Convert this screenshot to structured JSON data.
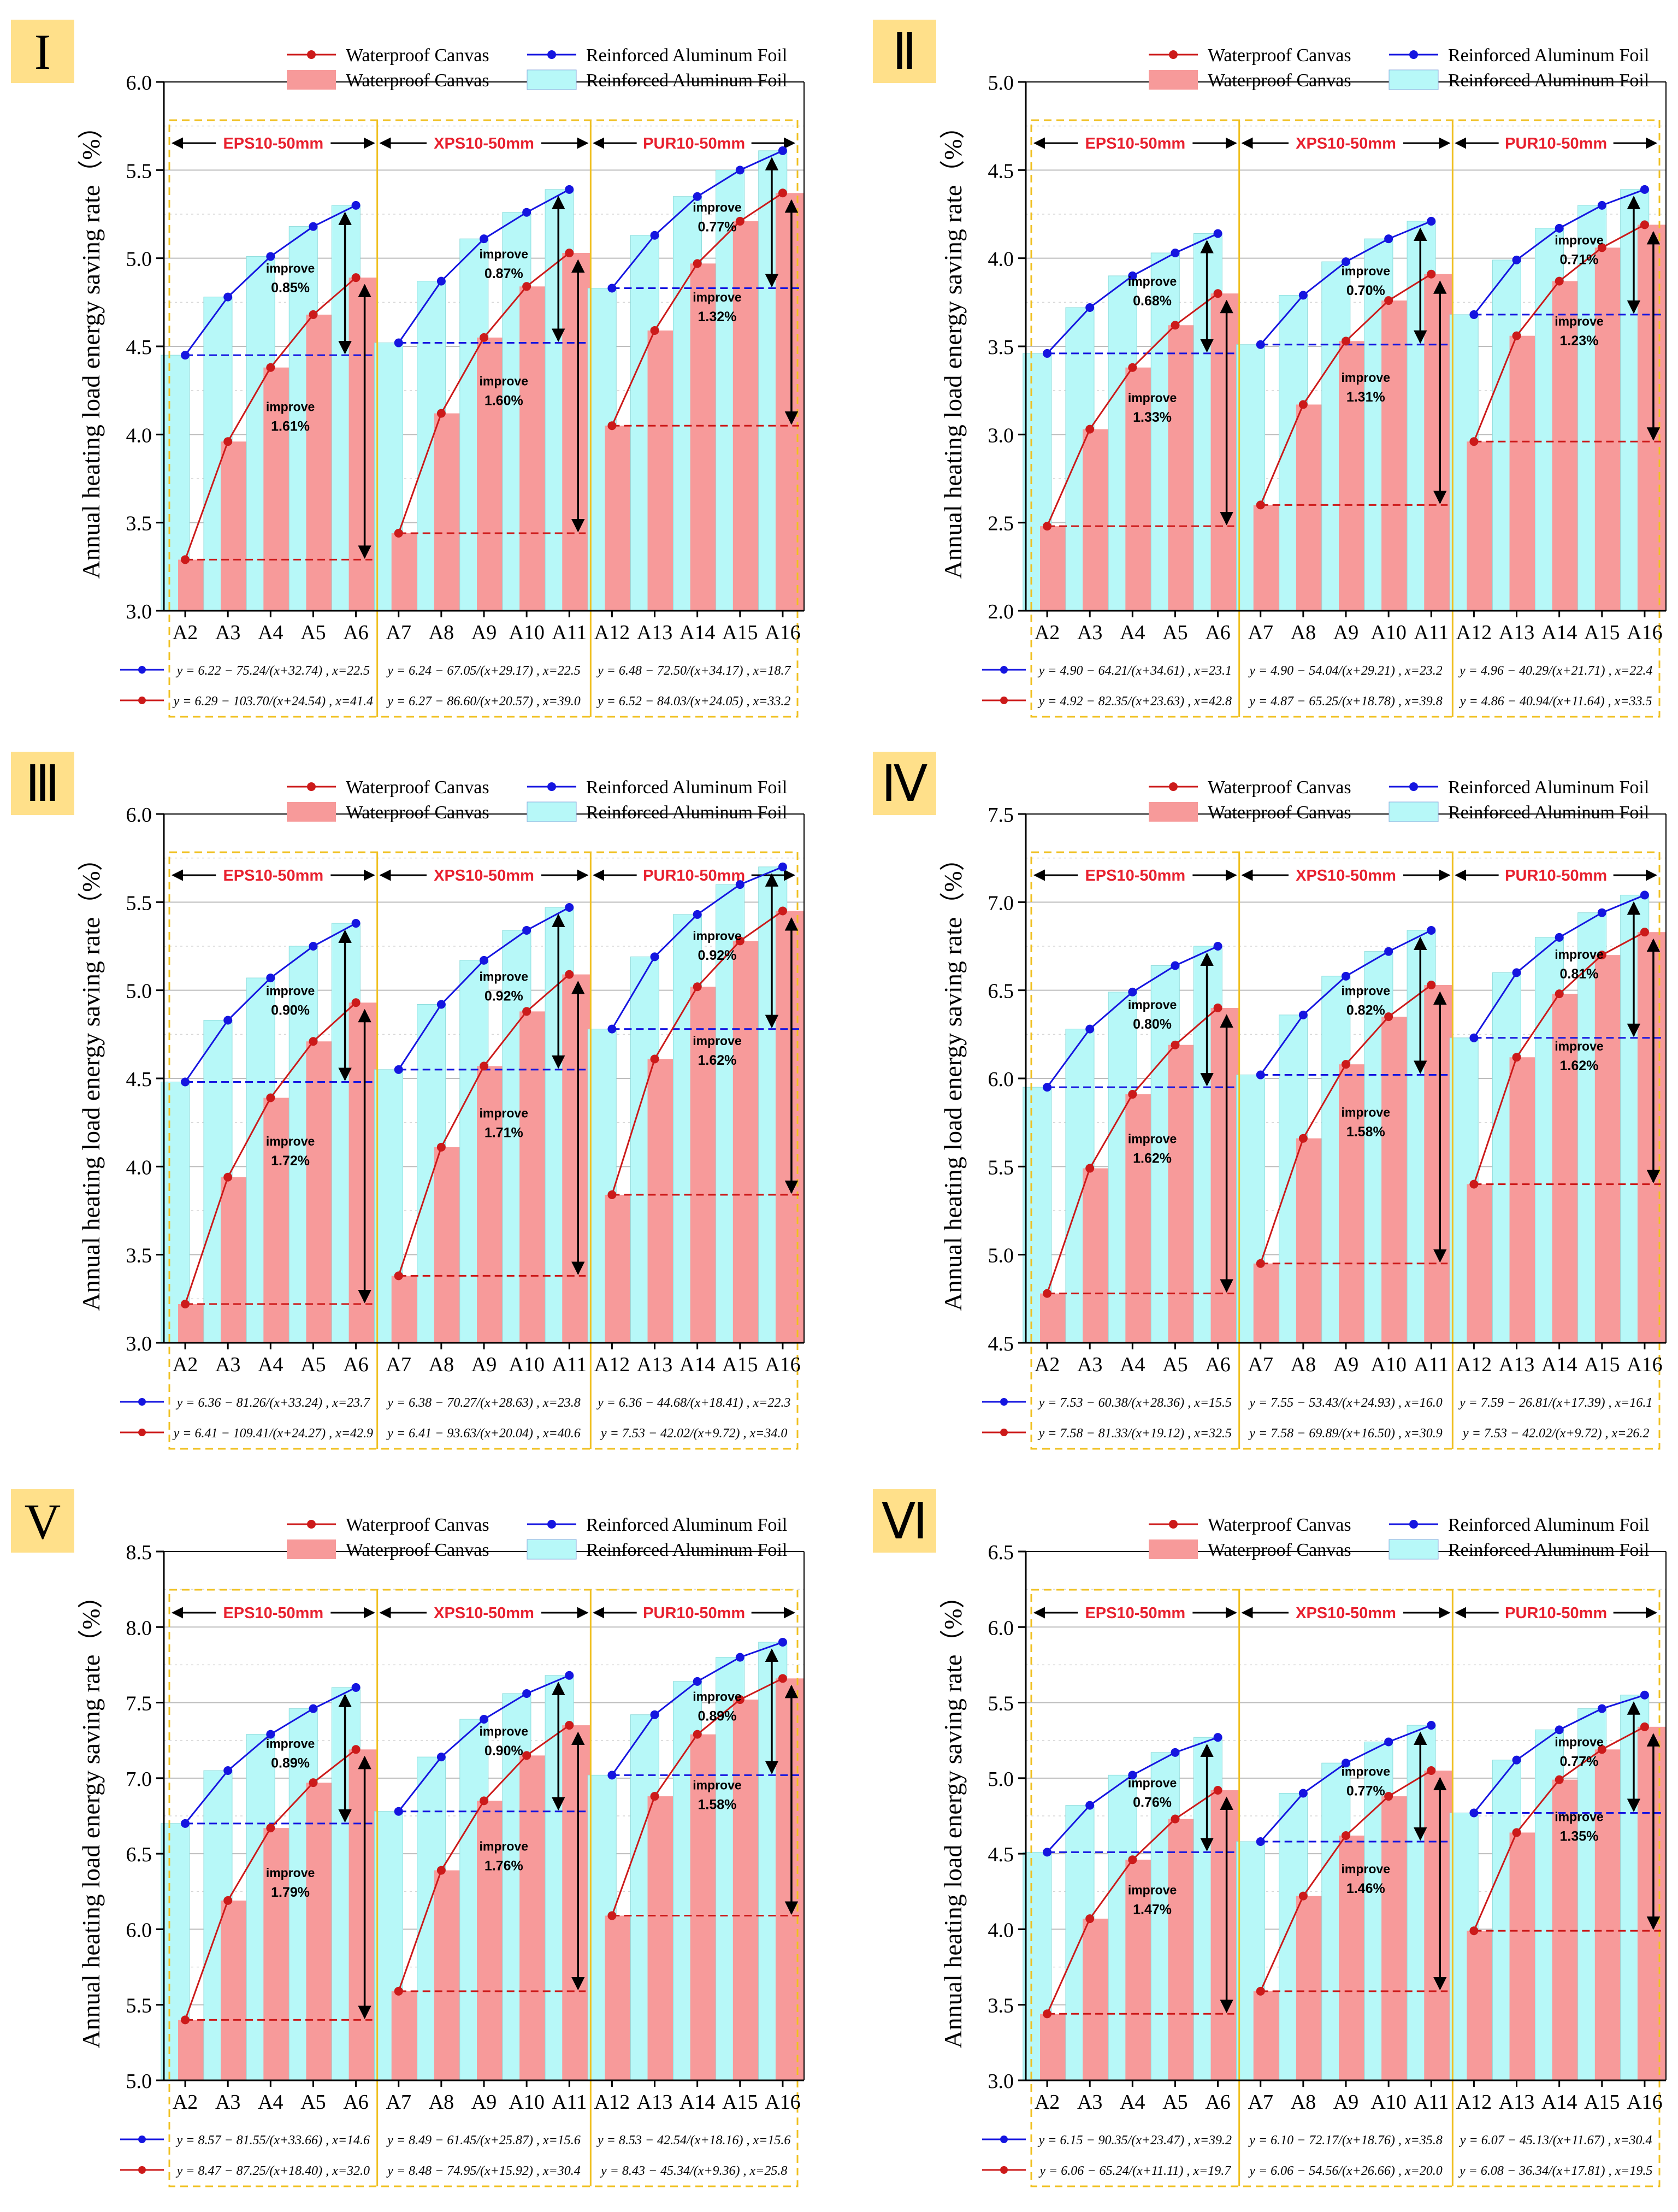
{
  "figure": {
    "legend": {
      "line_canvas": "Waterproof Canvas",
      "line_foil": "Reinforced Aluminum Foil",
      "bar_canvas": "Waterproof Canvas",
      "bar_foil": "Reinforced Aluminum Foil"
    },
    "sections": [
      "EPS10-50mm",
      "XPS10-50mm",
      "PUR10-50mm"
    ],
    "improve_word": "improve",
    "colors": {
      "foil_bar": "#b7f8f8",
      "canvas_bar": "#f79a9a",
      "foil_line": "#1515e0",
      "canvas_line": "#cc1a1a",
      "badge": "#ffe08a",
      "frame": "#f0c020",
      "section_text": "#e8202e"
    }
  },
  "chart_data": [
    {
      "type": "bar",
      "panel": "I",
      "ylabel": "Annual heating load energy saving rate（%）",
      "ylim": [
        3.0,
        6.0
      ],
      "yticks": [
        "3.0",
        "3.5",
        "4.0",
        "4.5",
        "5.0",
        "5.5",
        "6.0"
      ],
      "categories": [
        "A2",
        "A3",
        "A4",
        "A5",
        "A6",
        "A7",
        "A8",
        "A9",
        "A10",
        "A11",
        "A12",
        "A13",
        "A14",
        "A15",
        "A16"
      ],
      "series": [
        {
          "name": "Reinforced Aluminum Foil",
          "values": [
            4.45,
            4.78,
            5.01,
            5.18,
            5.3,
            4.52,
            4.87,
            5.11,
            5.26,
            5.39,
            4.83,
            5.13,
            5.35,
            5.5,
            5.61
          ]
        },
        {
          "name": "Waterproof Canvas",
          "values": [
            3.29,
            3.96,
            4.38,
            4.68,
            4.89,
            3.44,
            4.12,
            4.55,
            4.84,
            5.03,
            4.05,
            4.59,
            4.97,
            5.21,
            5.37
          ]
        }
      ],
      "improve_upper": [
        "0.85%",
        "0.87%",
        "0.77%"
      ],
      "improve_lower": [
        "1.61%",
        "1.60%",
        "1.32%"
      ],
      "equations": [
        {
          "foil": "y = 6.22 − 75.24/(x+32.74) , x=22.5",
          "canvas": "y = 6.29 − 103.70/(x+24.54) , x=41.4"
        },
        {
          "foil": "y = 6.24 − 67.05/(x+29.17) , x=22.5",
          "canvas": "y = 6.27 − 86.60/(x+20.57) , x=39.0"
        },
        {
          "foil": "y = 6.48 − 72.50/(x+34.17) , x=18.7",
          "canvas": "y = 6.52 − 84.03/(x+24.05) , x=33.2"
        }
      ]
    },
    {
      "type": "bar",
      "panel": "Ⅱ",
      "ylabel": "Annual heating load energy saving rate（%）",
      "ylim": [
        2.0,
        5.0
      ],
      "yticks": [
        "2.0",
        "2.5",
        "3.0",
        "3.5",
        "4.0",
        "4.5",
        "5.0"
      ],
      "categories": [
        "A2",
        "A3",
        "A4",
        "A5",
        "A6",
        "A7",
        "A8",
        "A9",
        "A10",
        "A11",
        "A12",
        "A13",
        "A14",
        "A15",
        "A16"
      ],
      "series": [
        {
          "name": "Reinforced Aluminum Foil",
          "values": [
            3.46,
            3.72,
            3.9,
            4.03,
            4.14,
            3.51,
            3.79,
            3.98,
            4.11,
            4.21,
            3.68,
            3.99,
            4.17,
            4.3,
            4.39
          ]
        },
        {
          "name": "Waterproof Canvas",
          "values": [
            2.48,
            3.03,
            3.38,
            3.62,
            3.8,
            2.6,
            3.17,
            3.53,
            3.76,
            3.91,
            2.96,
            3.56,
            3.87,
            4.06,
            4.19
          ]
        }
      ],
      "improve_upper": [
        "0.68%",
        "0.70%",
        "0.71%"
      ],
      "improve_lower": [
        "1.33%",
        "1.31%",
        "1.23%"
      ],
      "equations": [
        {
          "foil": "y = 4.90 − 64.21/(x+34.61) , x=23.1",
          "canvas": "y = 4.92 − 82.35/(x+23.63) , x=42.8"
        },
        {
          "foil": "y = 4.90 − 54.04/(x+29.21) , x=23.2",
          "canvas": "y = 4.87 − 65.25/(x+18.78) , x=39.8"
        },
        {
          "foil": "y = 4.96 − 40.29/(x+21.71) , x=22.4",
          "canvas": "y = 4.86 − 40.94/(x+11.64) , x=33.5"
        }
      ]
    },
    {
      "type": "bar",
      "panel": "Ⅲ",
      "ylabel": "Annual heating load energy saving rate（%）",
      "ylim": [
        3.0,
        6.0
      ],
      "yticks": [
        "3.0",
        "3.5",
        "4.0",
        "4.5",
        "5.0",
        "5.5",
        "6.0"
      ],
      "categories": [
        "A2",
        "A3",
        "A4",
        "A5",
        "A6",
        "A7",
        "A8",
        "A9",
        "A10",
        "A11",
        "A12",
        "A13",
        "A14",
        "A15",
        "A16"
      ],
      "series": [
        {
          "name": "Reinforced Aluminum Foil",
          "values": [
            4.48,
            4.83,
            5.07,
            5.25,
            5.38,
            4.55,
            4.92,
            5.17,
            5.34,
            5.47,
            4.78,
            5.19,
            5.43,
            5.6,
            5.7
          ]
        },
        {
          "name": "Waterproof Canvas",
          "values": [
            3.22,
            3.94,
            4.39,
            4.71,
            4.93,
            3.38,
            4.11,
            4.57,
            4.88,
            5.09,
            3.84,
            4.61,
            5.02,
            5.28,
            5.45
          ]
        }
      ],
      "improve_upper": [
        "0.90%",
        "0.92%",
        "0.92%"
      ],
      "improve_lower": [
        "1.72%",
        "1.71%",
        "1.62%"
      ],
      "equations": [
        {
          "foil": "y = 6.36 − 81.26/(x+33.24) , x=23.7",
          "canvas": "y = 6.41 − 109.41/(x+24.27) , x=42.9"
        },
        {
          "foil": "y = 6.38 − 70.27/(x+28.63) , x=23.8",
          "canvas": "y = 6.41 − 93.63/(x+20.04) , x=40.6"
        },
        {
          "foil": "y = 6.36 − 44.68/(x+18.41) , x=22.3",
          "canvas": "y = 7.53 − 42.02/(x+9.72) , x=34.0"
        }
      ]
    },
    {
      "type": "bar",
      "panel": "Ⅳ",
      "ylabel": "Annual heating load energy saving rate（%）",
      "ylim": [
        4.5,
        7.5
      ],
      "yticks": [
        "4.5",
        "5.0",
        "5.5",
        "6.0",
        "6.5",
        "7.0",
        "7.5"
      ],
      "categories": [
        "A2",
        "A3",
        "A4",
        "A5",
        "A6",
        "A7",
        "A8",
        "A9",
        "A10",
        "A11",
        "A12",
        "A13",
        "A14",
        "A15",
        "A16"
      ],
      "series": [
        {
          "name": "Reinforced Aluminum Foil",
          "values": [
            5.95,
            6.28,
            6.49,
            6.64,
            6.75,
            6.02,
            6.36,
            6.58,
            6.72,
            6.84,
            6.23,
            6.6,
            6.8,
            6.94,
            7.04
          ]
        },
        {
          "name": "Waterproof Canvas",
          "values": [
            4.78,
            5.49,
            5.91,
            6.19,
            6.4,
            4.95,
            5.66,
            6.08,
            6.35,
            6.53,
            5.4,
            6.12,
            6.48,
            6.7,
            6.83
          ]
        }
      ],
      "improve_upper": [
        "0.80%",
        "0.82%",
        "0.81%"
      ],
      "improve_lower": [
        "1.62%",
        "1.58%",
        "1.62%"
      ],
      "equations": [
        {
          "foil": "y = 7.53 − 60.38/(x+28.36) , x=15.5",
          "canvas": "y = 7.58 − 81.33/(x+19.12) , x=32.5"
        },
        {
          "foil": "y = 7.55 − 53.43/(x+24.93) , x=16.0",
          "canvas": "y = 7.58 − 69.89/(x+16.50) , x=30.9"
        },
        {
          "foil": "y = 7.59 − 26.81/(x+17.39) , x=16.1",
          "canvas": "y = 7.53 − 42.02/(x+9.72) , x=26.2"
        }
      ]
    },
    {
      "type": "bar",
      "panel": "V",
      "ylabel": "Annual heating load energy saving rate（%）",
      "ylim": [
        5.0,
        8.5
      ],
      "yticks": [
        "5.0",
        "5.5",
        "6.0",
        "6.5",
        "7.0",
        "7.5",
        "8.0",
        "8.5"
      ],
      "categories": [
        "A2",
        "A3",
        "A4",
        "A5",
        "A6",
        "A7",
        "A8",
        "A9",
        "A10",
        "A11",
        "A12",
        "A13",
        "A14",
        "A15",
        "A16"
      ],
      "series": [
        {
          "name": "Reinforced Aluminum Foil",
          "values": [
            6.7,
            7.05,
            7.29,
            7.46,
            7.6,
            6.78,
            7.14,
            7.39,
            7.56,
            7.68,
            7.02,
            7.42,
            7.64,
            7.8,
            7.9
          ]
        },
        {
          "name": "Waterproof Canvas",
          "values": [
            5.4,
            6.19,
            6.67,
            6.97,
            7.19,
            5.59,
            6.39,
            6.85,
            7.15,
            7.35,
            6.09,
            6.88,
            7.29,
            7.52,
            7.66
          ]
        }
      ],
      "improve_upper": [
        "0.89%",
        "0.90%",
        "0.89%"
      ],
      "improve_lower": [
        "1.79%",
        "1.76%",
        "1.58%"
      ],
      "equations": [
        {
          "foil": "y = 8.57 − 81.55/(x+33.66) , x=14.6",
          "canvas": "y = 8.47 − 87.25/(x+18.40) , x=32.0"
        },
        {
          "foil": "y = 8.49 − 61.45/(x+25.87) , x=15.6",
          "canvas": "y = 8.48 − 74.95/(x+15.92) , x=30.4"
        },
        {
          "foil": "y = 8.53 − 42.54/(x+18.16) , x=15.6",
          "canvas": "y = 8.43 − 45.34/(x+9.36) , x=25.8"
        }
      ]
    },
    {
      "type": "bar",
      "panel": "Ⅵ",
      "ylabel": "Annual heating load energy saving rate（%）",
      "ylim": [
        3.0,
        6.5
      ],
      "yticks": [
        "3.0",
        "3.5",
        "4.0",
        "4.5",
        "5.0",
        "5.5",
        "6.0",
        "6.5"
      ],
      "categories": [
        "A2",
        "A3",
        "A4",
        "A5",
        "A6",
        "A7",
        "A8",
        "A9",
        "A10",
        "A11",
        "A12",
        "A13",
        "A14",
        "A15",
        "A16"
      ],
      "series": [
        {
          "name": "Reinforced Aluminum Foil",
          "values": [
            4.51,
            4.82,
            5.02,
            5.17,
            5.27,
            4.58,
            4.9,
            5.1,
            5.24,
            5.35,
            4.77,
            5.12,
            5.32,
            5.46,
            5.55
          ]
        },
        {
          "name": "Waterproof Canvas",
          "values": [
            3.44,
            4.07,
            4.46,
            4.73,
            4.92,
            3.59,
            4.22,
            4.62,
            4.88,
            5.05,
            3.99,
            4.64,
            4.99,
            5.19,
            5.34
          ]
        }
      ],
      "improve_upper": [
        "0.76%",
        "0.77%",
        "0.77%"
      ],
      "improve_lower": [
        "1.47%",
        "1.46%",
        "1.35%"
      ],
      "equations": [
        {
          "foil": "y = 6.15 − 90.35/(x+23.47) , x=39.2",
          "canvas": "y = 6.06 − 65.24/(x+11.11) , x=19.7"
        },
        {
          "foil": "y = 6.10 − 72.17/(x+18.76) , x=35.8",
          "canvas": "y = 6.06 − 54.56/(x+26.66) , x=20.0"
        },
        {
          "foil": "y = 6.07 − 45.13/(x+11.67) , x=30.4",
          "canvas": "y = 6.08 − 36.34/(x+17.81) , x=19.5"
        }
      ]
    }
  ]
}
